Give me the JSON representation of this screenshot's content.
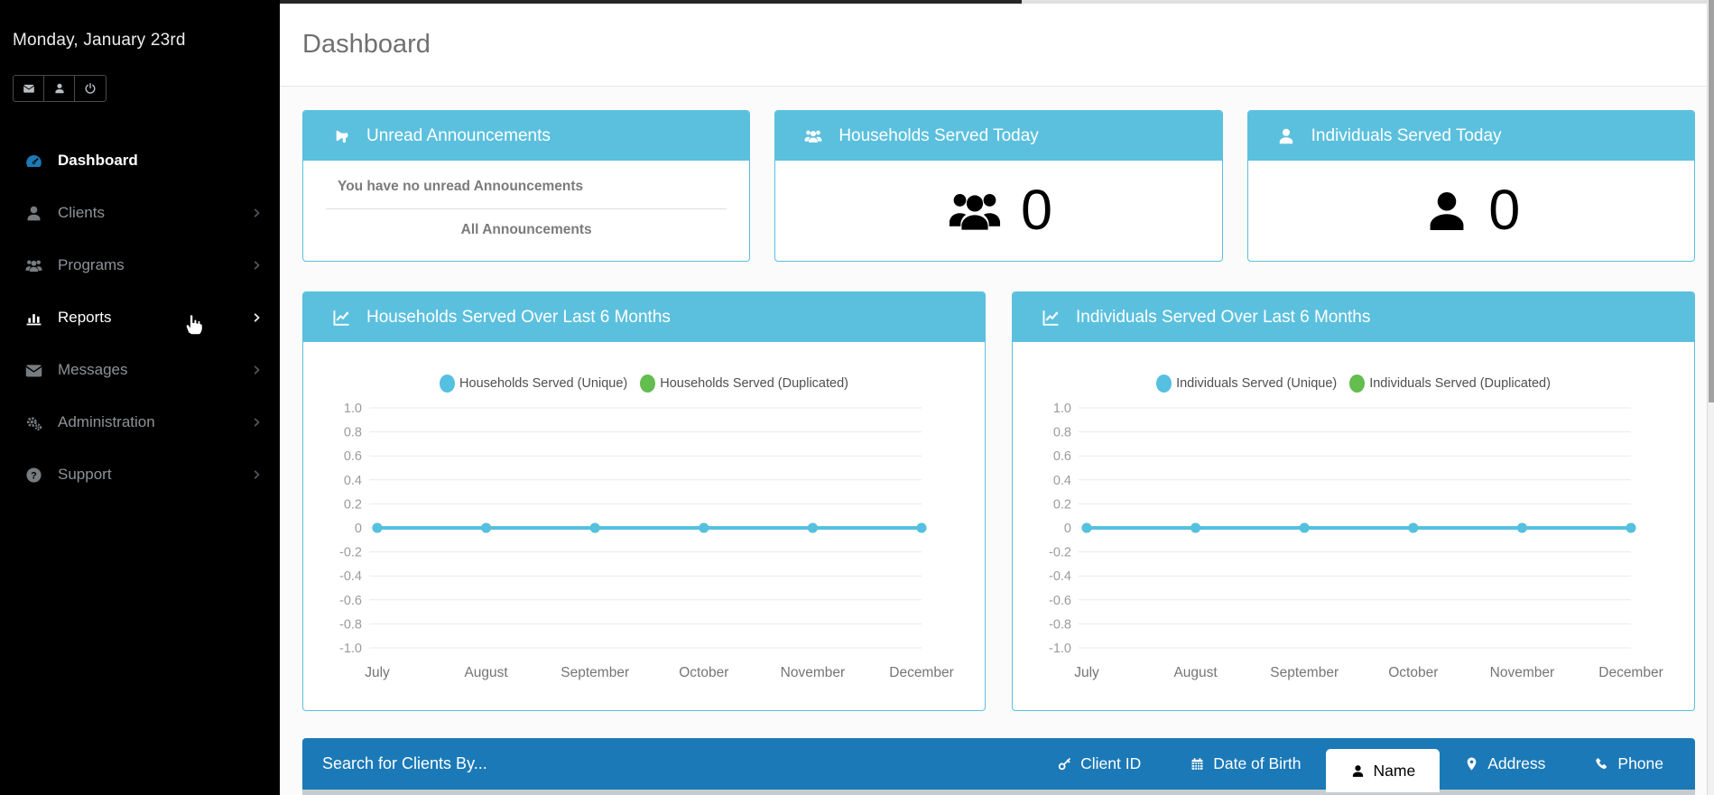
{
  "header": {
    "title": "Dashboard"
  },
  "sidebar": {
    "date": "Monday, January 23rd",
    "quick_actions": [
      {
        "name": "messages-shortcut-button",
        "icon": "envelope"
      },
      {
        "name": "profile-shortcut-button",
        "icon": "user"
      },
      {
        "name": "logout-button",
        "icon": "power"
      }
    ],
    "items": [
      {
        "label": "Dashboard",
        "icon": "dashboard",
        "active": true,
        "hovered": false,
        "chevron": false
      },
      {
        "label": "Clients",
        "icon": "user",
        "active": false,
        "hovered": false,
        "chevron": true
      },
      {
        "label": "Programs",
        "icon": "users",
        "active": false,
        "hovered": false,
        "chevron": true
      },
      {
        "label": "Reports",
        "icon": "bar-chart",
        "active": false,
        "hovered": true,
        "chevron": true
      },
      {
        "label": "Messages",
        "icon": "envelope",
        "active": false,
        "hovered": false,
        "chevron": true
      },
      {
        "label": "Administration",
        "icon": "gears",
        "active": false,
        "hovered": false,
        "chevron": true
      },
      {
        "label": "Support",
        "icon": "question-circle",
        "active": false,
        "hovered": false,
        "chevron": true
      }
    ]
  },
  "cards": {
    "announcements": {
      "title": "Unread Announcements",
      "icon": "bullhorn",
      "message": "You have no unread Announcements",
      "link": "All Announcements"
    },
    "households_today": {
      "title": "Households Served Today",
      "icon": "users",
      "value": "0"
    },
    "individuals_today": {
      "title": "Individuals Served Today",
      "icon": "user",
      "value": "0"
    }
  },
  "chart_data": [
    {
      "type": "line",
      "title": "Households Served Over Last 6 Months",
      "icon": "line-chart",
      "categories": [
        "July",
        "August",
        "September",
        "October",
        "November",
        "December"
      ],
      "series": [
        {
          "name": "Households Served (Unique)",
          "color": "#55c0e0",
          "values": [
            0,
            0,
            0,
            0,
            0,
            0
          ]
        },
        {
          "name": "Households Served (Duplicated)",
          "color": "#63bd4f",
          "values": [
            0,
            0,
            0,
            0,
            0,
            0
          ]
        }
      ],
      "ylim": [
        -1.0,
        1.0
      ],
      "yticks": [
        "1.0",
        "0.8",
        "0.6",
        "0.4",
        "0.2",
        "0",
        "-0.2",
        "-0.4",
        "-0.6",
        "-0.8",
        "-1.0"
      ],
      "grid": true,
      "legend_position": "top"
    },
    {
      "type": "line",
      "title": "Individuals Served Over Last 6 Months",
      "icon": "line-chart",
      "categories": [
        "July",
        "August",
        "September",
        "October",
        "November",
        "December"
      ],
      "series": [
        {
          "name": "Individuals Served (Unique)",
          "color": "#55c0e0",
          "values": [
            0,
            0,
            0,
            0,
            0,
            0
          ]
        },
        {
          "name": "Individuals Served (Duplicated)",
          "color": "#63bd4f",
          "values": [
            0,
            0,
            0,
            0,
            0,
            0
          ]
        }
      ],
      "ylim": [
        -1.0,
        1.0
      ],
      "yticks": [
        "1.0",
        "0.8",
        "0.6",
        "0.4",
        "0.2",
        "0",
        "-0.2",
        "-0.4",
        "-0.6",
        "-0.8",
        "-1.0"
      ],
      "grid": true,
      "legend_position": "top"
    }
  ],
  "search_panel": {
    "title": "Search for Clients By...",
    "tabs": [
      {
        "label": "Client ID",
        "icon": "key",
        "active": false
      },
      {
        "label": "Date of Birth",
        "icon": "calendar",
        "active": false
      },
      {
        "label": "Name",
        "icon": "user",
        "active": true
      },
      {
        "label": "Address",
        "icon": "map-marker",
        "active": false
      },
      {
        "label": "Phone",
        "icon": "phone",
        "active": false
      }
    ]
  },
  "colors": {
    "accent": "#5bc0de",
    "primary": "#1b79b7",
    "series_unique": "#55c0e0",
    "series_duplicated": "#63bd4f",
    "sidebar_bg": "#000000"
  }
}
